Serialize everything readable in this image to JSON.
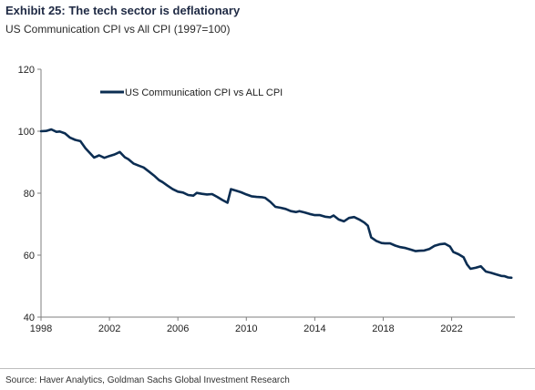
{
  "header": {
    "title": "Exhibit 25: The tech sector is deflationary",
    "subtitle": "US Communication CPI vs All CPI (1997=100)"
  },
  "footer": {
    "source": "Source: Haver Analytics, Goldman Sachs Global Investment Research"
  },
  "colors": {
    "line": "#0b2d52",
    "axis": "#7f7f7f"
  },
  "chart_data": {
    "type": "line",
    "title": "Exhibit 25: The tech sector is deflationary",
    "subtitle": "US Communication CPI vs All CPI (1997=100)",
    "xlabel": "",
    "ylabel": "",
    "xlim": [
      1998,
      2025.7
    ],
    "ylim": [
      40,
      120
    ],
    "x_ticks": [
      "1998",
      "2002",
      "2006",
      "2010",
      "2014",
      "2018",
      "2022"
    ],
    "y_ticks": [
      "40",
      "60",
      "80",
      "100",
      "120"
    ],
    "grid": false,
    "legend_position": "top-left",
    "series": [
      {
        "name": "US Communication CPI vs ALL CPI",
        "x": [
          1998.0,
          1998.3,
          1998.6,
          1998.9,
          1999.1,
          1999.4,
          1999.7,
          2000.0,
          2000.3,
          2000.6,
          2000.9,
          2001.1,
          2001.4,
          2001.7,
          2002.0,
          2002.3,
          2002.6,
          2002.9,
          2003.1,
          2003.4,
          2003.7,
          2004.0,
          2004.3,
          2004.6,
          2004.9,
          2005.1,
          2005.4,
          2005.7,
          2006.0,
          2006.3,
          2006.6,
          2006.9,
          2007.1,
          2007.4,
          2007.7,
          2008.0,
          2008.3,
          2008.6,
          2008.9,
          2009.1,
          2009.4,
          2009.7,
          2010.0,
          2010.3,
          2010.6,
          2010.9,
          2011.1,
          2011.4,
          2011.7,
          2012.0,
          2012.3,
          2012.6,
          2012.9,
          2013.1,
          2013.4,
          2013.7,
          2014.0,
          2014.3,
          2014.6,
          2014.9,
          2015.1,
          2015.4,
          2015.7,
          2016.0,
          2016.3,
          2016.6,
          2016.9,
          2017.1,
          2017.3,
          2017.6,
          2017.9,
          2018.1,
          2018.4,
          2018.7,
          2019.0,
          2019.3,
          2019.6,
          2019.9,
          2020.1,
          2020.4,
          2020.7,
          2021.0,
          2021.3,
          2021.6,
          2021.9,
          2022.1,
          2022.4,
          2022.7,
          2022.9,
          2023.1,
          2023.4,
          2023.7,
          2024.0,
          2024.3,
          2024.6,
          2024.9,
          2025.1,
          2025.3,
          2025.5
        ],
        "values": [
          100.0,
          100.1,
          100.6,
          99.8,
          99.9,
          99.3,
          97.9,
          97.2,
          96.8,
          94.5,
          92.7,
          91.5,
          92.2,
          91.4,
          92.0,
          92.5,
          93.3,
          91.6,
          91.0,
          89.6,
          88.9,
          88.3,
          87.0,
          85.7,
          84.2,
          83.6,
          82.4,
          81.3,
          80.5,
          80.2,
          79.4,
          79.2,
          80.1,
          79.8,
          79.6,
          79.7,
          78.8,
          77.8,
          76.9,
          81.3,
          80.8,
          80.3,
          79.6,
          79.0,
          78.8,
          78.7,
          78.5,
          77.2,
          75.6,
          75.3,
          74.9,
          74.2,
          73.9,
          74.2,
          73.8,
          73.3,
          72.9,
          72.9,
          72.4,
          72.2,
          72.8,
          71.5,
          70.9,
          72.0,
          72.3,
          71.5,
          70.5,
          69.5,
          65.7,
          64.6,
          63.9,
          63.8,
          63.8,
          63.1,
          62.6,
          62.3,
          61.8,
          61.3,
          61.4,
          61.5,
          62.0,
          63.0,
          63.5,
          63.7,
          62.8,
          61.0,
          60.3,
          59.3,
          57.0,
          55.6,
          55.9,
          56.4,
          54.7,
          54.3,
          53.8,
          53.3,
          53.2,
          52.8,
          52.7
        ]
      }
    ]
  }
}
